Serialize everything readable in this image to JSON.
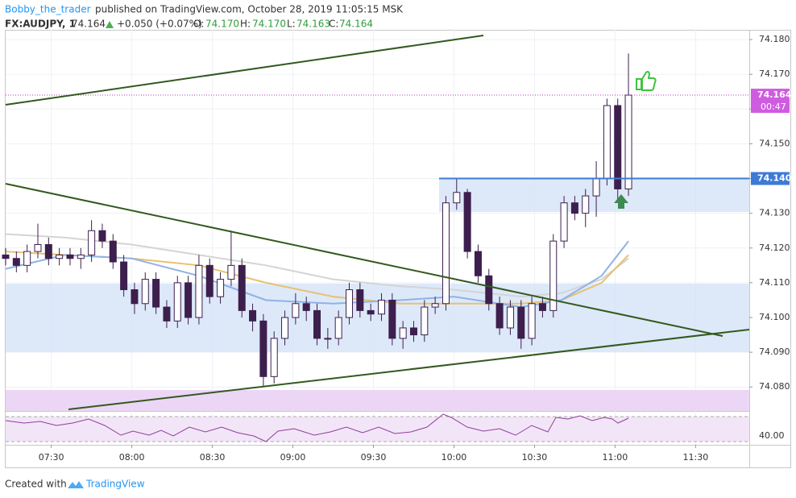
{
  "header": {
    "author": "Bobby_the_trader",
    "published": "published on TradingView.com, October 28, 2019 11:05:15 MSK",
    "symbol": "FX:AUDJPY, 1",
    "last": "74.164",
    "change": "+0.050 (+0.07%)",
    "o_label": "O:",
    "open": "74.170",
    "h_label": "H:",
    "high": "74.170",
    "l_label": "L:",
    "low": "74.163",
    "c_label": "C:",
    "close": "74.164"
  },
  "chart_data": {
    "type": "candlestick",
    "x": [
      "07:13",
      "07:17",
      "07:21",
      "07:25",
      "07:29",
      "07:33",
      "07:37",
      "07:41",
      "07:45",
      "07:49",
      "07:53",
      "07:57",
      "08:01",
      "08:05",
      "08:09",
      "08:13",
      "08:17",
      "08:21",
      "08:25",
      "08:29",
      "08:33",
      "08:37",
      "08:41",
      "08:45",
      "08:49",
      "08:53",
      "08:57",
      "09:01",
      "09:05",
      "09:09",
      "09:13",
      "09:17",
      "09:21",
      "09:25",
      "09:29",
      "09:33",
      "09:37",
      "09:41",
      "09:45",
      "09:49",
      "09:53",
      "09:57",
      "10:01",
      "10:05",
      "10:09",
      "10:13",
      "10:17",
      "10:21",
      "10:25",
      "10:29",
      "10:33",
      "10:37",
      "10:41",
      "10:45",
      "10:49",
      "10:53",
      "10:57",
      "11:01",
      "11:05"
    ],
    "open": [
      74.118,
      74.117,
      74.115,
      74.119,
      74.121,
      74.117,
      74.118,
      74.117,
      74.118,
      74.125,
      74.122,
      74.116,
      74.108,
      74.104,
      74.111,
      74.103,
      74.099,
      74.11,
      74.1,
      74.115,
      74.106,
      74.111,
      74.115,
      74.102,
      74.099,
      74.083,
      74.094,
      74.1,
      74.104,
      74.102,
      74.094,
      74.094,
      74.1,
      74.108,
      74.102,
      74.101,
      74.105,
      74.094,
      74.097,
      74.095,
      74.103,
      74.104,
      74.133,
      74.136,
      74.119,
      74.112,
      74.104,
      74.097,
      74.103,
      74.094,
      74.104,
      74.102,
      74.122,
      74.133,
      74.13,
      74.135,
      74.14,
      74.161,
      74.137
    ],
    "high": [
      74.12,
      74.119,
      74.121,
      74.127,
      74.123,
      74.12,
      74.12,
      74.12,
      74.128,
      74.127,
      74.124,
      74.118,
      74.11,
      74.113,
      74.113,
      74.105,
      74.112,
      74.112,
      74.118,
      74.117,
      74.113,
      74.125,
      74.117,
      74.104,
      74.101,
      74.096,
      74.102,
      74.107,
      74.106,
      74.104,
      74.097,
      74.102,
      74.11,
      74.11,
      74.104,
      74.107,
      74.107,
      74.099,
      74.099,
      74.105,
      74.106,
      74.135,
      74.14,
      74.137,
      74.121,
      74.114,
      74.106,
      74.105,
      74.105,
      74.106,
      74.106,
      74.124,
      74.135,
      74.135,
      74.137,
      74.145,
      74.163,
      74.163,
      74.176
    ],
    "low": [
      74.115,
      74.113,
      74.113,
      74.117,
      74.115,
      74.115,
      74.115,
      74.114,
      74.116,
      74.12,
      74.114,
      74.106,
      74.101,
      74.102,
      74.101,
      74.097,
      74.097,
      74.098,
      74.098,
      74.104,
      74.104,
      74.109,
      74.1,
      74.096,
      74.08,
      74.081,
      74.092,
      74.098,
      74.099,
      74.092,
      74.091,
      74.092,
      74.098,
      74.1,
      74.099,
      74.099,
      74.092,
      74.091,
      74.093,
      74.093,
      74.101,
      74.102,
      74.131,
      74.117,
      74.11,
      74.102,
      74.095,
      74.095,
      74.091,
      74.092,
      74.1,
      74.1,
      74.12,
      74.128,
      74.126,
      74.129,
      74.138,
      74.134,
      74.135
    ],
    "close": [
      74.117,
      74.115,
      74.119,
      74.121,
      74.117,
      74.118,
      74.117,
      74.118,
      74.125,
      74.122,
      74.116,
      74.108,
      74.104,
      74.111,
      74.103,
      74.099,
      74.11,
      74.1,
      74.115,
      74.106,
      74.111,
      74.115,
      74.102,
      74.099,
      74.083,
      74.094,
      74.1,
      74.104,
      74.102,
      74.094,
      74.094,
      74.1,
      74.108,
      74.102,
      74.101,
      74.105,
      74.094,
      74.097,
      74.095,
      74.103,
      74.104,
      74.133,
      74.136,
      74.119,
      74.112,
      74.104,
      74.097,
      74.103,
      74.094,
      74.104,
      74.102,
      74.122,
      74.133,
      74.13,
      74.135,
      74.14,
      74.161,
      74.137,
      74.164
    ],
    "up_color": "#ffffff",
    "down_color": "#3d1f4d",
    "wick_color": "#3d1f4d",
    "ma_x": [
      "07:13",
      "07:35",
      "08:00",
      "08:25",
      "08:50",
      "09:15",
      "09:40",
      "10:00",
      "10:25",
      "10:40",
      "10:55",
      "11:05"
    ],
    "moving_averages": [
      {
        "color": "#d4d4d4",
        "values": [
          74.124,
          74.123,
          74.121,
          74.118,
          74.115,
          74.111,
          74.109,
          74.108,
          74.106,
          74.107,
          74.111,
          74.117
        ]
      },
      {
        "color": "#e8c170",
        "values": [
          74.119,
          74.118,
          74.117,
          74.115,
          74.11,
          74.106,
          74.104,
          74.104,
          74.104,
          74.105,
          74.11,
          74.118
        ]
      },
      {
        "color": "#8fb2e6",
        "values": [
          74.114,
          74.118,
          74.117,
          74.112,
          74.105,
          74.104,
          74.105,
          74.106,
          74.103,
          74.105,
          74.112,
          74.122
        ]
      }
    ],
    "resistance": {
      "value": 74.14,
      "label": "74.140"
    },
    "countdown": "00:47",
    "rsi_tick": "40.00",
    "xlim": [
      "07:13",
      "11:50"
    ],
    "xticks": [
      "07:30",
      "08:00",
      "08:30",
      "09:00",
      "09:30",
      "10:00",
      "10:30",
      "11:00",
      "11:30"
    ],
    "ylim": [
      74.0731,
      74.1828
    ],
    "yticks": [
      {
        "value": 74.08,
        "label": "74.080"
      },
      {
        "value": 74.09,
        "label": "74.090"
      },
      {
        "value": 74.1,
        "label": "74.100"
      },
      {
        "value": 74.11,
        "label": "74.110"
      },
      {
        "value": 74.12,
        "label": "74.120"
      },
      {
        "value": 74.13,
        "label": "74.130"
      },
      {
        "value": 74.14,
        "label": "74.140"
      },
      {
        "value": 74.15,
        "label": "74.150"
      },
      {
        "value": 74.16,
        "label": "74.160"
      },
      {
        "value": 74.17,
        "label": "74.170"
      },
      {
        "value": 74.18,
        "label": "74.180"
      }
    ],
    "grid": true
  },
  "footer": {
    "created": "Created with",
    "brand": "TradingView"
  }
}
